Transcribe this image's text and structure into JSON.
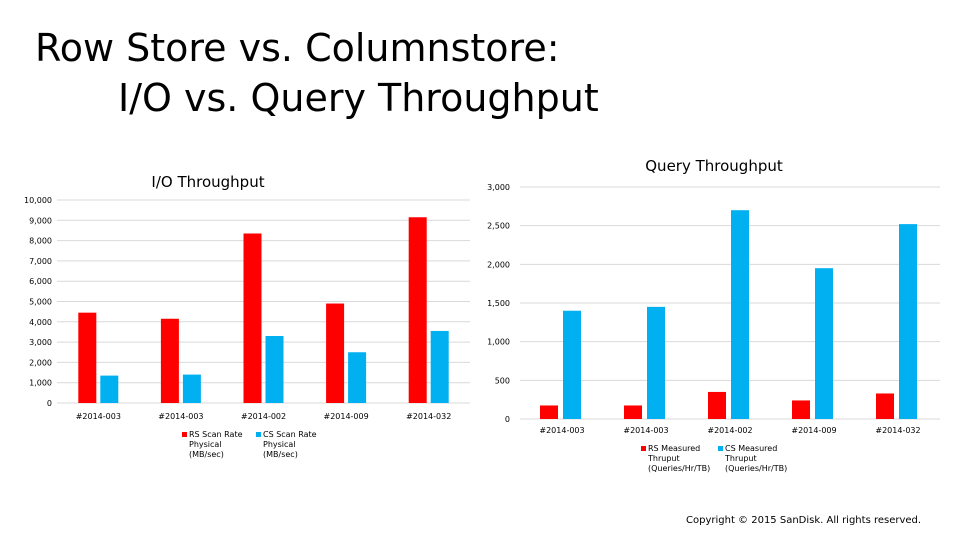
{
  "slide": {
    "title_line1": "Row Store vs. Columnstore:",
    "title_line2": "I/O vs. Query Throughput",
    "footer": "Copyright © 2015 SanDisk. All rights reserved."
  },
  "colors": {
    "rs": "#ff0000",
    "cs": "#00b0f0",
    "grid": "#d9d9d9"
  },
  "chart_data": [
    {
      "type": "bar",
      "title": "I/O Throughput",
      "categories": [
        "#2014-003",
        "#2014-003",
        "#2014-002",
        "#2014-009",
        "#2014-032"
      ],
      "series": [
        {
          "name": "RS Scan Rate Physical (MB/sec)",
          "values": [
            4450,
            4150,
            8350,
            4900,
            9150
          ]
        },
        {
          "name": "CS Scan Rate Physical (MB/sec)",
          "values": [
            1350,
            1400,
            3300,
            2500,
            3550
          ]
        }
      ],
      "ylim": [
        0,
        10000
      ],
      "yticks": [
        "0",
        "1,000",
        "2,000",
        "3,000",
        "4,000",
        "5,000",
        "6,000",
        "7,000",
        "8,000",
        "9,000",
        "10,000"
      ],
      "grid": true,
      "legend": "bottom"
    },
    {
      "type": "bar",
      "title": "Query Throughput",
      "categories": [
        "#2014-003",
        "#2014-003",
        "#2014-002",
        "#2014-009",
        "#2014-032"
      ],
      "series": [
        {
          "name": "RS Measured Thruput (Queries/Hr/TB)",
          "values": [
            175,
            175,
            350,
            240,
            330
          ]
        },
        {
          "name": "CS Measured Thruput (Queries/Hr/TB)",
          "values": [
            1400,
            1450,
            2700,
            1950,
            2520
          ]
        }
      ],
      "ylim": [
        0,
        3000
      ],
      "yticks": [
        "0",
        "500",
        "1,000",
        "1,500",
        "2,000",
        "2,500",
        "3,000"
      ],
      "grid": true,
      "legend": "bottom"
    }
  ]
}
